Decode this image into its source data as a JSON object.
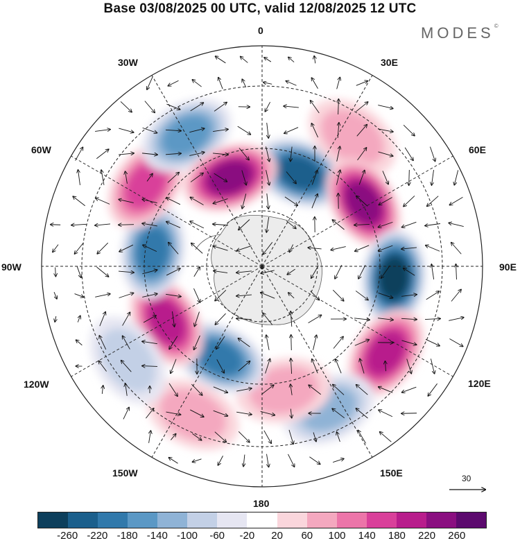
{
  "title": "Base 03/08/2025 00 UTC, valid 12/08/2025 12 UTC",
  "brand": "MODES",
  "brand_mark": "©",
  "longitude_labels": {
    "lon0": "0",
    "lon30e": "30E",
    "lon60e": "60E",
    "lon90e": "90E",
    "lon120e": "120E",
    "lon150e": "150E",
    "lon180": "180",
    "lon150w": "150W",
    "lon120w": "120W",
    "lon90w": "90W",
    "lon60w": "60W",
    "lon30w": "30W"
  },
  "vector_scale_label": "30",
  "colorbar": {
    "ticks": [
      "-260",
      "-220",
      "-180",
      "-140",
      "-100",
      "-60",
      "-20",
      "20",
      "60",
      "100",
      "140",
      "180",
      "220",
      "260"
    ],
    "colors": [
      "#0d3f5c",
      "#1b5f8c",
      "#3179ab",
      "#5b98c5",
      "#8fb3d6",
      "#c3d0e6",
      "#e6e6f2",
      "#ffffff",
      "#fad6dc",
      "#f4a8bf",
      "#ec75a9",
      "#d9409a",
      "#b81d8c",
      "#8a0f80",
      "#5c0a6e"
    ]
  },
  "anomalies": [
    {
      "lon": 0,
      "lat": -55,
      "value": 0
    },
    {
      "lon": 22,
      "lat": -58,
      "value": -220
    },
    {
      "lon": 35,
      "lat": -40,
      "value": 60
    },
    {
      "lon": 58,
      "lat": -52,
      "value": 220
    },
    {
      "lon": 95,
      "lat": -48,
      "value": -260
    },
    {
      "lon": 125,
      "lat": -42,
      "value": 200
    },
    {
      "lon": 155,
      "lat": -40,
      "value": -100
    },
    {
      "lon": 170,
      "lat": -50,
      "value": 60
    },
    {
      "lon": -155,
      "lat": -58,
      "value": -200
    },
    {
      "lon": -155,
      "lat": -38,
      "value": 80
    },
    {
      "lon": -120,
      "lat": -55,
      "value": 200
    },
    {
      "lon": -125,
      "lat": -38,
      "value": -60
    },
    {
      "lon": -82,
      "lat": -55,
      "value": -180
    },
    {
      "lon": -55,
      "lat": -45,
      "value": 170
    },
    {
      "lon": -30,
      "lat": -42,
      "value": -140
    },
    {
      "lon": -20,
      "lat": -60,
      "value": 230
    }
  ]
}
